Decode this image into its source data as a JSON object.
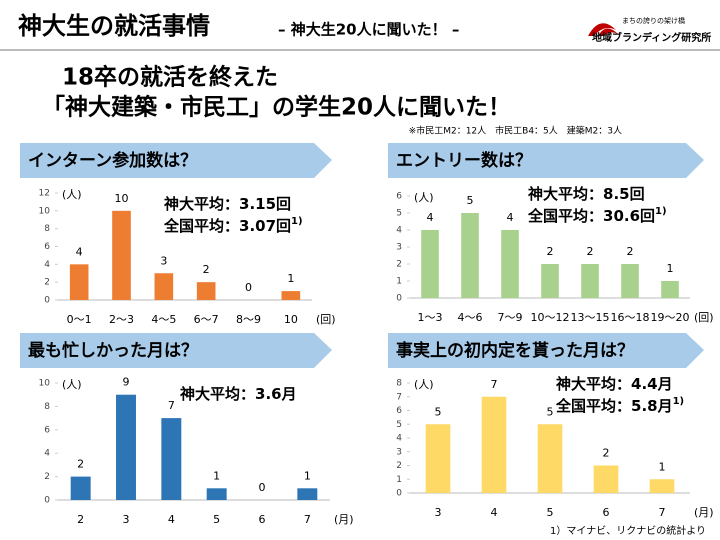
{
  "header": {
    "title": "神大生の就活事情",
    "subtitle": "– 神大生20人に聞いた！ –",
    "logo_top": "まちの誇りの架け橋",
    "logo_bottom": "地域ブランディング研究所"
  },
  "headline": [
    "18卒の就活を終えた",
    "「神大建築・市民工」の学生20人に聞いた！"
  ],
  "note": "※市民工M2：12人　市民工B4：5人　建築M2：3人",
  "footnote": "1）マイナビ、リクナビの統計より",
  "chart_data": [
    {
      "type": "bar",
      "title": "インターン参加数は？",
      "y_label": "(人)",
      "x_label": "(回)",
      "categories": [
        "0〜1",
        "2〜3",
        "4〜5",
        "6〜7",
        "8〜9",
        "10"
      ],
      "values": [
        4,
        10,
        3,
        2,
        0,
        1
      ],
      "color": "#ed7d31",
      "ylim": [
        0,
        12
      ],
      "yticks": [
        0,
        2,
        4,
        6,
        8,
        10,
        12
      ],
      "annotations": [
        {
          "text": "神大平均：3.15回"
        },
        {
          "text": "全国平均：3.07回",
          "note": "1)"
        }
      ]
    },
    {
      "type": "bar",
      "title": "エントリー数は？",
      "y_label": "(人)",
      "x_label": "(回)",
      "categories": [
        "1〜3",
        "4〜6",
        "7〜9",
        "10〜12",
        "13〜15",
        "16〜18",
        "19〜20"
      ],
      "values": [
        4,
        5,
        4,
        2,
        2,
        2,
        1
      ],
      "color": "#a9d18e",
      "ylim": [
        0,
        6
      ],
      "yticks": [
        0,
        1,
        2,
        3,
        4,
        5,
        6
      ],
      "annotations": [
        {
          "text": "神大平均：8.5回"
        },
        {
          "text": "全国平均：30.6回",
          "note": "1)"
        }
      ]
    },
    {
      "type": "bar",
      "title": "最も忙しかった月は？",
      "y_label": "(人)",
      "x_label": "(月)",
      "categories": [
        "2",
        "3",
        "4",
        "5",
        "6",
        "7"
      ],
      "values": [
        2,
        9,
        7,
        1,
        0,
        1
      ],
      "color": "#2e75b6",
      "ylim": [
        0,
        10
      ],
      "yticks": [
        0,
        2,
        4,
        6,
        8,
        10
      ],
      "annotations": [
        {
          "text": "神大平均：3.6月"
        }
      ]
    },
    {
      "type": "bar",
      "title": "事実上の初内定を貰った月は？",
      "y_label": "(人)",
      "x_label": "(月)",
      "categories": [
        "3",
        "4",
        "5",
        "6",
        "7"
      ],
      "values": [
        5,
        7,
        5,
        2,
        1
      ],
      "color": "#ffd966",
      "ylim": [
        0,
        8
      ],
      "yticks": [
        0,
        1,
        2,
        3,
        4,
        5,
        6,
        7,
        8
      ],
      "annotations": [
        {
          "text": "神大平均：4.4月"
        },
        {
          "text": "全国平均：5.8月",
          "note": "1)"
        }
      ]
    }
  ]
}
